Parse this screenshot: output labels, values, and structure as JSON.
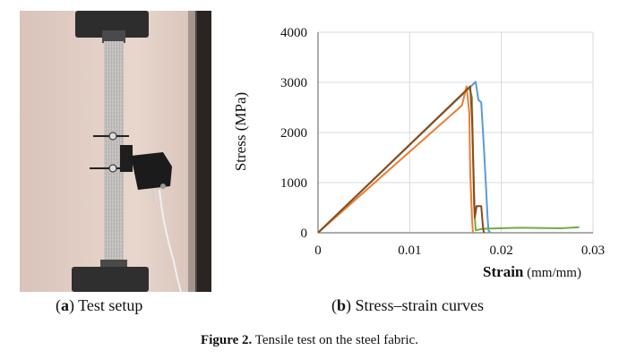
{
  "panel_a": {
    "label": "a",
    "caption": "Test setup"
  },
  "panel_b": {
    "label": "b",
    "caption": "Stress–strain curves"
  },
  "figure": {
    "label": "Figure 2.",
    "caption": "Tensile test on the steel fabric."
  },
  "chart_data": {
    "type": "line",
    "title": "",
    "xlabel": "Strain",
    "xlabel_unit": "(mm/mm)",
    "ylabel": "Stress (MPa)",
    "xlim": [
      0,
      0.03
    ],
    "ylim": [
      0,
      4000
    ],
    "xticks": [
      0,
      0.01,
      0.02,
      0.03
    ],
    "xtick_labels": [
      "0",
      "0.01",
      "0.02",
      "0.03"
    ],
    "yticks": [
      0,
      1000,
      2000,
      3000,
      4000
    ],
    "ytick_labels": [
      "0",
      "1000",
      "2000",
      "3000",
      "4000"
    ],
    "grid": true,
    "legend": "none",
    "series": [
      {
        "color": "#5b9bd5",
        "x": [
          0,
          0.0172,
          0.0175,
          0.0178,
          0.0181,
          0.0183,
          0.0185,
          0.0186,
          0.0188
        ],
        "y": [
          0,
          3010,
          2650,
          2600,
          1700,
          1000,
          300,
          50,
          0
        ]
      },
      {
        "color": "#ed7d31",
        "x": [
          0,
          0.0157,
          0.0162,
          0.0165,
          0.0166,
          0.0168,
          0.0169
        ],
        "y": [
          0,
          2540,
          2920,
          2400,
          1200,
          300,
          0
        ]
      },
      {
        "color": "#70ad47",
        "x": [
          0,
          0.0165,
          0.0168,
          0.017,
          0.0172,
          0.018,
          0.022,
          0.0265,
          0.0285
        ],
        "y": [
          0,
          2900,
          2700,
          600,
          50,
          80,
          100,
          90,
          110
        ]
      },
      {
        "color": "#8c4a1d",
        "x": [
          0,
          0.0166,
          0.0168,
          0.0171,
          0.0173,
          0.0178,
          0.018,
          0.0181
        ],
        "y": [
          0,
          2920,
          2300,
          300,
          530,
          530,
          100,
          0
        ]
      }
    ]
  }
}
